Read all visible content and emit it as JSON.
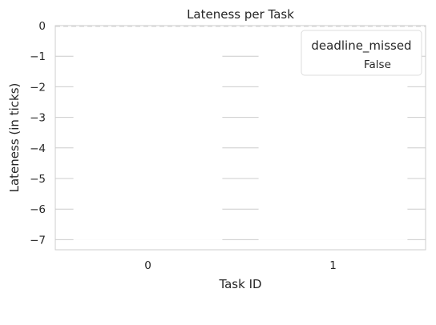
{
  "chart_data": {
    "type": "bar",
    "title": "Lateness per Task",
    "xlabel": "Task ID",
    "ylabel": "Lateness (in ticks)",
    "categories": [
      "0",
      "1"
    ],
    "ylim": [
      -7.33,
      0
    ],
    "yticks": [
      0,
      -1,
      -2,
      -3,
      -4,
      -5,
      -6,
      -7
    ],
    "ytick_labels": [
      "0",
      "−1",
      "−2",
      "−3",
      "−4",
      "−5",
      "−6",
      "−7"
    ],
    "series": [
      {
        "name": "False",
        "values": [
          -7,
          -7
        ],
        "color": "#ffffff"
      }
    ],
    "reference_line": {
      "value": 0,
      "style": "dashed",
      "color": "#d9d9d9"
    },
    "grid": true,
    "legend": {
      "title": "deadline_missed",
      "position": "top-right",
      "entries": [
        "False"
      ]
    }
  }
}
